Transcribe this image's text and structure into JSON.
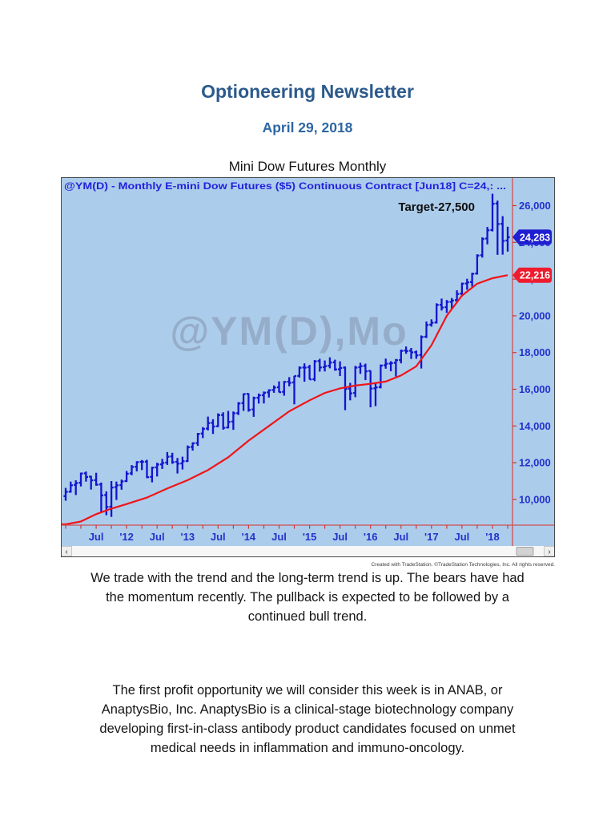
{
  "page": {
    "title": "Optioneering Newsletter",
    "date": "April 29, 2018",
    "chart_caption": "Mini Dow Futures Monthly",
    "paragraph1": "We trade with the trend and the long-term trend is up. The bears have had\nthe momentum recently. The pullback is expected to be followed by a\ncontinued bull trend.",
    "paragraph2": "The first profit opportunity we will consider this week is in ANAB, or\nAnaptysBio, Inc. AnaptysBio is a clinical-stage biotechnology company\ndeveloping first-in-class antibody product candidates focused on unmet\nmedical needs in inflammation and immuno-oncology."
  },
  "chart": {
    "header": "@YM(D) - Monthly  E-mini Dow Futures ($5) Continuous Contract [Jun18]  C=24,: ...",
    "target_label": "Target-27,500",
    "watermark": "@YM(D),Mo",
    "copyright": "Created with TradeStation. ©TradeStation Technologies, Inc. All rights reserved.",
    "scrollbar": {
      "left_arrow": "‹",
      "right_arrow": "›"
    },
    "price_tags": [
      {
        "v": 24283,
        "t": "24,283",
        "bg": "#1f1fd2"
      },
      {
        "v": 22216,
        "t": "22,216",
        "bg": "#ed1c2e"
      }
    ],
    "y_ticks": [
      {
        "v": 26000,
        "t": "26,000"
      },
      {
        "v": 24000,
        "t": "24,000"
      },
      {
        "v": 22000,
        "t": "22,000"
      },
      {
        "v": 20000,
        "t": "20,000"
      },
      {
        "v": 18000,
        "t": "18,000"
      },
      {
        "v": 16000,
        "t": "16,000"
      },
      {
        "v": 14000,
        "t": "14,000"
      },
      {
        "v": 12000,
        "t": "12,000"
      },
      {
        "v": 10000,
        "t": "10,000"
      }
    ],
    "x_labels": [
      {
        "i": 6,
        "t": "Jul"
      },
      {
        "i": 12,
        "t": "'12"
      },
      {
        "i": 18,
        "t": "Jul"
      },
      {
        "i": 24,
        "t": "'13"
      },
      {
        "i": 30,
        "t": "Jul"
      },
      {
        "i": 36,
        "t": "'14"
      },
      {
        "i": 42,
        "t": "Jul"
      },
      {
        "i": 48,
        "t": "'15"
      },
      {
        "i": 54,
        "t": "Jul"
      },
      {
        "i": 60,
        "t": "'16"
      },
      {
        "i": 66,
        "t": "Jul"
      },
      {
        "i": 72,
        "t": "'17"
      },
      {
        "i": 78,
        "t": "Jul"
      },
      {
        "i": 84,
        "t": "'18"
      }
    ],
    "colors": {
      "bg": "#accceb",
      "bars": "#1414cf",
      "ma": "#f01418",
      "header": "#2222dd",
      "label": "#2233cc",
      "axis": "#d05050",
      "tick": "#d43434",
      "watermark": "#8090a8"
    }
  },
  "chart_data": {
    "type": "bar",
    "subtype": "ohlc-monthly",
    "symbol": "@YM(D)",
    "interval": "Monthly",
    "contract": "E-mini Dow Futures ($5) Continuous Contract [Jun18]",
    "start_month": "2011-01",
    "end_month": "2018-04",
    "last_close": 24283,
    "moving_average_last": 22216,
    "target": 27500,
    "ylim": [
      8600,
      27550
    ],
    "bars": [
      [
        10180,
        10630,
        9930,
        10410
      ],
      [
        10420,
        10970,
        10370,
        10770
      ],
      [
        10790,
        11040,
        10240,
        10890
      ],
      [
        10910,
        11460,
        10710,
        11410
      ],
      [
        11420,
        11520,
        10970,
        11220
      ],
      [
        11240,
        11290,
        10540,
        11040
      ],
      [
        11050,
        11450,
        10750,
        10800
      ],
      [
        10820,
        10920,
        9320,
        10220
      ],
      [
        10240,
        10440,
        9140,
        9590
      ],
      [
        9600,
        11000,
        9050,
        10650
      ],
      [
        10670,
        10970,
        9970,
        10770
      ],
      [
        10780,
        11080,
        10530,
        10980
      ],
      [
        11000,
        11550,
        10950,
        11400
      ],
      [
        11420,
        11870,
        11320,
        11770
      ],
      [
        11780,
        12080,
        11530,
        12030
      ],
      [
        12050,
        12150,
        11600,
        12050
      ],
      [
        12060,
        12160,
        11160,
        11210
      ],
      [
        11230,
        11780,
        10930,
        11730
      ],
      [
        11750,
        12000,
        11250,
        11900
      ],
      [
        11910,
        12210,
        11660,
        11990
      ],
      [
        12010,
        12580,
        11880,
        12330
      ],
      [
        12340,
        12540,
        11940,
        12030
      ],
      [
        12050,
        12260,
        11410,
        11950
      ],
      [
        11960,
        12330,
        11630,
        12080
      ],
      [
        12090,
        12940,
        12040,
        12840
      ],
      [
        12860,
        13110,
        12660,
        13060
      ],
      [
        13070,
        13620,
        12920,
        13570
      ],
      [
        13590,
        13940,
        13340,
        13840
      ],
      [
        13860,
        14510,
        13760,
        14160
      ],
      [
        14170,
        14370,
        13570,
        13970
      ],
      [
        13990,
        14690,
        13940,
        14590
      ],
      [
        14600,
        14750,
        13800,
        13900
      ],
      [
        13920,
        14820,
        13870,
        14220
      ],
      [
        14240,
        14790,
        13790,
        14690
      ],
      [
        14700,
        15300,
        14600,
        15230
      ],
      [
        15250,
        15770,
        14820,
        15740
      ],
      [
        15750,
        15780,
        14780,
        14880
      ],
      [
        14900,
        15600,
        14500,
        15520
      ],
      [
        15540,
        15770,
        15220,
        15670
      ],
      [
        15680,
        15880,
        15230,
        15810
      ],
      [
        15830,
        16000,
        15550,
        15950
      ],
      [
        15960,
        16210,
        15810,
        16090
      ],
      [
        16110,
        16430,
        15830,
        15840
      ],
      [
        15860,
        16450,
        15650,
        16400
      ],
      [
        16410,
        16660,
        16160,
        16350
      ],
      [
        16370,
        16730,
        15180,
        16720
      ],
      [
        16730,
        17240,
        16640,
        17170
      ],
      [
        17190,
        17410,
        16410,
        17180
      ],
      [
        17200,
        17330,
        16530,
        16540
      ],
      [
        16550,
        17590,
        16440,
        17520
      ],
      [
        17540,
        17660,
        16960,
        17190
      ],
      [
        17200,
        17570,
        16970,
        17260
      ],
      [
        17280,
        17740,
        17140,
        17450
      ],
      [
        17470,
        17610,
        17010,
        17080
      ],
      [
        17090,
        17520,
        16720,
        17160
      ],
      [
        17180,
        17240,
        14860,
        16020
      ],
      [
        16030,
        16350,
        15400,
        15780
      ],
      [
        15800,
        17270,
        15570,
        17180
      ],
      [
        17200,
        17440,
        16840,
        17260
      ],
      [
        17270,
        17400,
        16500,
        16980
      ],
      [
        17000,
        17020,
        15020,
        16040
      ],
      [
        16050,
        16330,
        15080,
        16100
      ],
      [
        16120,
        17350,
        16050,
        17290
      ],
      [
        17310,
        17670,
        17120,
        17390
      ],
      [
        17400,
        17530,
        16980,
        17420
      ],
      [
        17440,
        17650,
        16700,
        17580
      ],
      [
        17590,
        18160,
        17410,
        18090
      ],
      [
        18110,
        18330,
        17930,
        18080
      ],
      [
        18100,
        18250,
        17650,
        18010
      ],
      [
        18020,
        18110,
        17660,
        17850
      ],
      [
        17870,
        18930,
        17130,
        18850
      ],
      [
        18860,
        19690,
        18790,
        19500
      ],
      [
        19520,
        19810,
        19410,
        19620
      ],
      [
        19640,
        20680,
        19580,
        20590
      ],
      [
        20600,
        20940,
        20290,
        20450
      ],
      [
        20470,
        20860,
        20160,
        20750
      ],
      [
        20760,
        20970,
        20370,
        20830
      ],
      [
        20850,
        21390,
        20740,
        21190
      ],
      [
        21210,
        21810,
        21060,
        21750
      ],
      [
        21760,
        22020,
        21420,
        21820
      ],
      [
        21840,
        22340,
        21590,
        22290
      ],
      [
        22300,
        23350,
        22250,
        23280
      ],
      [
        23300,
        24270,
        23170,
        24190
      ],
      [
        24210,
        24840,
        23890,
        24660
      ],
      [
        24670,
        26650,
        24600,
        26100
      ],
      [
        26120,
        26270,
        23320,
        25000
      ],
      [
        25010,
        25430,
        23330,
        24080
      ],
      [
        24100,
        24850,
        23500,
        24283
      ]
    ],
    "ma_points": [
      [
        -0.9,
        8300
      ],
      [
        0,
        8400
      ],
      [
        3,
        8800
      ],
      [
        6,
        9200
      ],
      [
        9,
        9500
      ],
      [
        12,
        9750
      ],
      [
        16,
        10100
      ],
      [
        20,
        10600
      ],
      [
        24,
        11050
      ],
      [
        28,
        11600
      ],
      [
        32,
        12300
      ],
      [
        36,
        13200
      ],
      [
        40,
        14000
      ],
      [
        44,
        14800
      ],
      [
        48,
        15400
      ],
      [
        51,
        15800
      ],
      [
        54,
        16050
      ],
      [
        57,
        16200
      ],
      [
        60,
        16300
      ],
      [
        63,
        16420
      ],
      [
        66,
        16750
      ],
      [
        69,
        17250
      ],
      [
        72,
        18400
      ],
      [
        75,
        20000
      ],
      [
        78,
        21100
      ],
      [
        81,
        21750
      ],
      [
        84,
        22050
      ],
      [
        87,
        22216
      ]
    ]
  }
}
